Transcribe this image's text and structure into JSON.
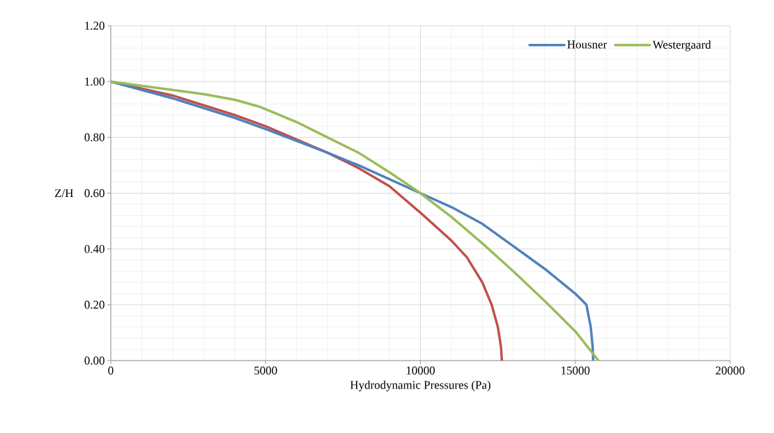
{
  "chart_data": {
    "type": "line",
    "xlabel": "Hydrodynamic Pressures (Pa)",
    "ylabel": "Z/H",
    "xlim": [
      0,
      20000
    ],
    "ylim": [
      0,
      1.2
    ],
    "xticks": [
      0,
      5000,
      10000,
      15000,
      20000
    ],
    "yticks": [
      {
        "value": 0,
        "label": "0.00"
      },
      {
        "value": 0.2,
        "label": "0.20"
      },
      {
        "value": 0.4,
        "label": "0.40"
      },
      {
        "value": 0.6,
        "label": "0.60"
      },
      {
        "value": 0.8,
        "label": "0.80"
      },
      {
        "value": 1.0,
        "label": "1.00"
      },
      {
        "value": 1.2,
        "label": "1.20"
      }
    ],
    "grid": true,
    "legend": "top right",
    "marker": "none",
    "line_style": "solid",
    "series": [
      {
        "color": "#c0504d",
        "x": [
          0,
          2000,
          4000,
          5000,
          7000,
          8000,
          9000,
          10000,
          11000,
          11500,
          12000,
          12300,
          12500,
          12600,
          12630
        ],
        "values": [
          1.0,
          0.95,
          0.88,
          0.84,
          0.745,
          0.69,
          0.625,
          0.53,
          0.43,
          0.37,
          0.28,
          0.2,
          0.12,
          0.05,
          0.0
        ]
      },
      {
        "name": "Housner",
        "color": "#4f81bd",
        "x": [
          0,
          2000,
          4000,
          5000,
          7000,
          8000,
          10000,
          11000,
          12000,
          13000,
          14000,
          15000,
          15360,
          15500,
          15560,
          15580
        ],
        "values": [
          1.0,
          0.94,
          0.87,
          0.83,
          0.745,
          0.7,
          0.6,
          0.55,
          0.49,
          0.41,
          0.33,
          0.24,
          0.2,
          0.12,
          0.05,
          0.0
        ]
      },
      {
        "name": "Westergaard",
        "color": "#9bbb59",
        "x": [
          0,
          1000,
          2000,
          3000,
          4000,
          4800,
          6000,
          7000,
          8000,
          9000,
          10000,
          11000,
          12000,
          13000,
          14000,
          15000,
          15750
        ],
        "values": [
          1.0,
          0.985,
          0.97,
          0.955,
          0.935,
          0.91,
          0.855,
          0.8,
          0.745,
          0.675,
          0.6,
          0.515,
          0.42,
          0.32,
          0.215,
          0.105,
          0.0
        ]
      }
    ]
  }
}
